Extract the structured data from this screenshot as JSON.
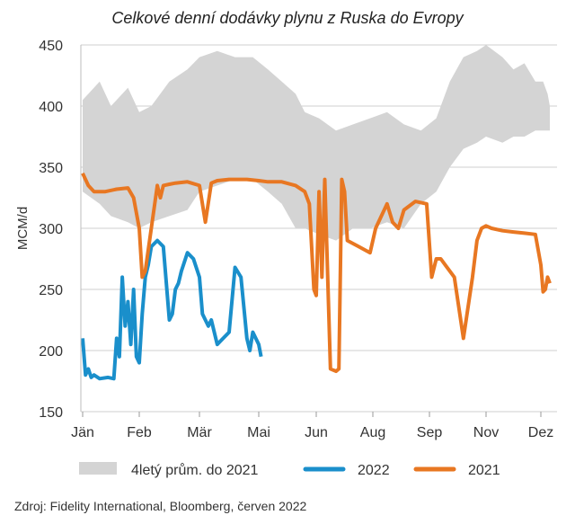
{
  "chart_data": {
    "type": "line",
    "title": "Celkové denní dodávky plynu z Ruska do Evropy",
    "ylabel": "MCM/d",
    "xlabel": "",
    "ylim": [
      150,
      450
    ],
    "yticks": [
      150,
      200,
      250,
      300,
      350,
      400,
      450
    ],
    "xlim": [
      0,
      11.1
    ],
    "x_ticks": [
      {
        "label": "Jän",
        "x": 0
      },
      {
        "label": "Feb",
        "x": 1
      },
      {
        "label": "Mär",
        "x": 2
      },
      {
        "label": "Mai",
        "x": 3
      },
      {
        "label": "Jun",
        "x": 4.25
      },
      {
        "label": "Aug",
        "x": 5.25
      },
      {
        "label": "Sep",
        "x": 6.25
      },
      {
        "label": "Nov",
        "x": 7.5
      },
      {
        "label": "Dez",
        "x": 8.5
      }
    ],
    "grid": "horizontal",
    "legend_position": "bottom",
    "series": [
      {
        "name": "4letý prům. do 2021",
        "kind": "band",
        "color": "#d4d4d4",
        "x": [
          0.0,
          0.3,
          0.5,
          0.8,
          1.0,
          1.2,
          1.5,
          1.8,
          2.0,
          2.3,
          2.6,
          2.9,
          3.2,
          3.5,
          3.8,
          4.0,
          4.3,
          4.6,
          4.9,
          5.2,
          5.5,
          5.8,
          6.1,
          6.4,
          6.7,
          7.0,
          7.3,
          7.5,
          7.8,
          8.0,
          8.2,
          8.4,
          8.6,
          8.8,
          8.9
        ],
        "upper": [
          405,
          420,
          400,
          415,
          395,
          400,
          420,
          430,
          440,
          445,
          440,
          440,
          430,
          420,
          410,
          395,
          390,
          380,
          385,
          390,
          395,
          385,
          380,
          390,
          420,
          440,
          445,
          450,
          440,
          430,
          435,
          420,
          420,
          410,
          400
        ],
        "lower": [
          330,
          320,
          310,
          305,
          300,
          305,
          310,
          315,
          330,
          335,
          340,
          340,
          330,
          320,
          300,
          300,
          295,
          290,
          300,
          300,
          305,
          300,
          320,
          330,
          350,
          365,
          370,
          375,
          370,
          375,
          375,
          380,
          380,
          380,
          380
        ]
      },
      {
        "name": "2022",
        "kind": "line",
        "color": "#1a8fcb",
        "x": [
          0.0,
          0.05,
          0.1,
          0.15,
          0.2,
          0.3,
          0.45,
          0.55,
          0.6,
          0.65,
          0.7,
          0.75,
          0.8,
          0.85,
          0.9,
          0.95,
          1.0,
          1.05,
          1.1,
          1.15,
          1.2,
          1.3,
          1.4,
          1.5,
          1.55,
          1.6,
          1.65,
          1.7,
          1.8,
          1.9,
          2.0,
          2.05,
          2.1,
          2.15,
          2.2,
          2.3,
          2.4,
          2.5,
          2.6,
          2.7,
          2.75,
          2.8,
          2.85,
          2.9,
          3.0,
          3.05
        ],
        "values": [
          210,
          180,
          185,
          178,
          180,
          177,
          178,
          177,
          210,
          195,
          260,
          220,
          240,
          205,
          250,
          195,
          190,
          230,
          260,
          270,
          285,
          290,
          285,
          225,
          230,
          250,
          255,
          265,
          280,
          275,
          260,
          230,
          225,
          220,
          225,
          205,
          210,
          215,
          268,
          260,
          235,
          210,
          200,
          215,
          205,
          195
        ],
        "legend_label": "2022"
      },
      {
        "name": "2021",
        "kind": "line",
        "color": "#e87722",
        "x": [
          0.0,
          0.1,
          0.2,
          0.4,
          0.6,
          0.8,
          0.9,
          1.0,
          1.05,
          1.1,
          1.2,
          1.3,
          1.35,
          1.4,
          1.5,
          1.6,
          1.8,
          2.0,
          2.1,
          2.2,
          2.3,
          2.5,
          2.8,
          3.0,
          3.2,
          3.5,
          3.8,
          4.0,
          4.1,
          4.2,
          4.25,
          4.3,
          4.35,
          4.4,
          4.5,
          4.6,
          4.65,
          4.7,
          4.75,
          4.8,
          5.0,
          5.2,
          5.3,
          5.5,
          5.6,
          5.7,
          5.8,
          6.0,
          6.2,
          6.3,
          6.4,
          6.5,
          6.6,
          6.8,
          7.0,
          7.2,
          7.3,
          7.4,
          7.5,
          7.6,
          7.8,
          8.0,
          8.2,
          8.4,
          8.5,
          8.6,
          8.7,
          8.8,
          8.9
        ],
        "values": [
          345,
          335,
          330,
          330,
          332,
          333,
          325,
          300,
          260,
          265,
          300,
          335,
          325,
          335,
          336,
          337,
          338,
          335,
          305,
          337,
          339,
          340,
          340,
          339,
          338,
          338,
          335,
          330,
          320,
          250,
          245,
          330,
          260,
          340,
          185,
          183,
          185,
          340,
          330,
          290,
          285,
          280,
          300,
          320,
          305,
          300,
          315,
          322,
          320,
          260,
          275,
          275,
          270,
          260,
          210,
          260,
          290,
          300,
          302,
          300,
          298,
          297,
          296,
          295,
          270,
          248,
          250,
          260,
          255
        ],
        "legend_label": "2021"
      }
    ]
  },
  "source": "Zdroj: Fidelity International, Bloomberg, červen 2022"
}
